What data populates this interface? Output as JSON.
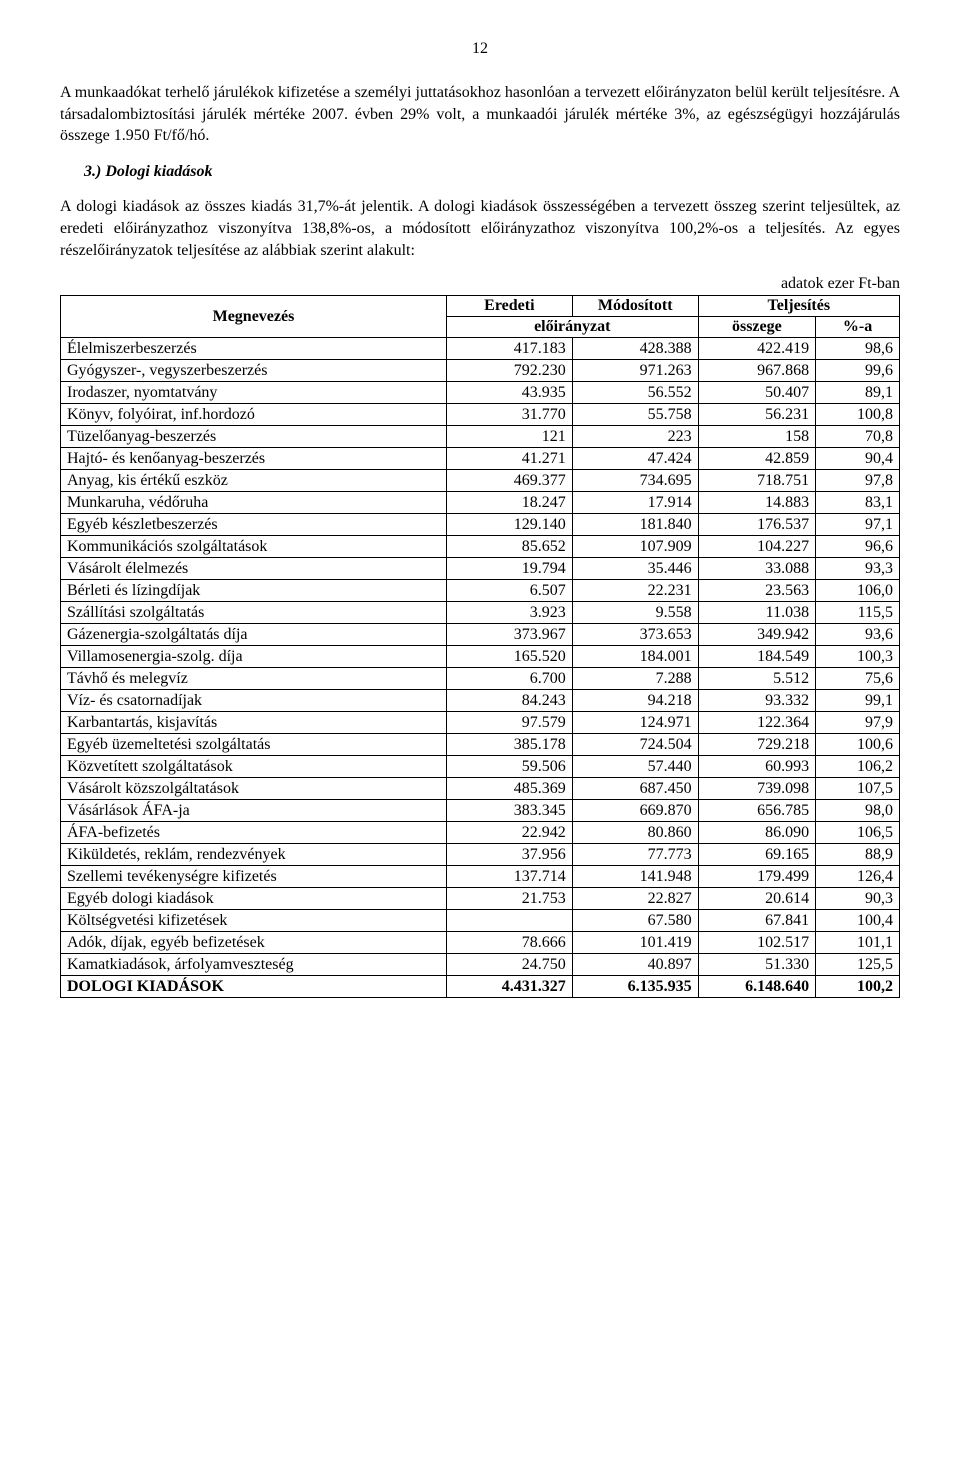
{
  "page_number": "12",
  "paragraphs": {
    "p1": "A munkaadókat terhelő járulékok kifizetése a személyi juttatásokhoz hasonlóan a tervezett előirányzaton belül került teljesítésre. A társadalombiztosítási járulék mértéke 2007. évben 29% volt, a munkaadói járulék mértéke 3%, az egészségügyi hozzájárulás összege 1.950 Ft/fő/hó.",
    "heading": "3.)  Dologi kiadások",
    "p2": "A dologi kiadások az összes kiadás 31,7%-át jelentik. A dologi kiadások összességében a tervezett összeg szerint teljesültek, az eredeti előirányzathoz viszonyítva 138,8%-os, a módosított előirányzathoz viszonyítva 100,2%-os a teljesítés. Az egyes részelőirányzatok teljesítése az alábbiak szerint alakult:",
    "caption": "adatok ezer Ft-ban"
  },
  "table": {
    "headers": {
      "name": "Megnevezés",
      "original": "Eredeti",
      "modified": "Módosított",
      "budget_span": "előirányzat",
      "fulfillment": "Teljesítés",
      "amount": "összege",
      "pct": "%-a"
    },
    "col_widths": [
      "46%",
      "15%",
      "15%",
      "14%",
      "10%"
    ],
    "rows": [
      {
        "name": "Élelmiszerbeszerzés",
        "original": "417.183",
        "modified": "428.388",
        "amount": "422.419",
        "pct": "98,6"
      },
      {
        "name": "Gyógyszer-, vegyszerbeszerzés",
        "original": "792.230",
        "modified": "971.263",
        "amount": "967.868",
        "pct": "99,6"
      },
      {
        "name": "Irodaszer, nyomtatvány",
        "original": "43.935",
        "modified": "56.552",
        "amount": "50.407",
        "pct": "89,1"
      },
      {
        "name": "Könyv, folyóirat, inf.hordozó",
        "original": "31.770",
        "modified": "55.758",
        "amount": "56.231",
        "pct": "100,8"
      },
      {
        "name": "Tüzelőanyag-beszerzés",
        "original": "121",
        "modified": "223",
        "amount": "158",
        "pct": "70,8"
      },
      {
        "name": "Hajtó- és kenőanyag-beszerzés",
        "original": "41.271",
        "modified": "47.424",
        "amount": "42.859",
        "pct": "90,4"
      },
      {
        "name": "Anyag, kis értékű eszköz",
        "original": "469.377",
        "modified": "734.695",
        "amount": "718.751",
        "pct": "97,8"
      },
      {
        "name": "Munkaruha, védőruha",
        "original": "18.247",
        "modified": "17.914",
        "amount": "14.883",
        "pct": "83,1"
      },
      {
        "name": "Egyéb készletbeszerzés",
        "original": "129.140",
        "modified": "181.840",
        "amount": "176.537",
        "pct": "97,1"
      },
      {
        "name": "Kommunikációs szolgáltatások",
        "original": "85.652",
        "modified": "107.909",
        "amount": "104.227",
        "pct": "96,6"
      },
      {
        "name": "Vásárolt élelmezés",
        "original": "19.794",
        "modified": "35.446",
        "amount": "33.088",
        "pct": "93,3"
      },
      {
        "name": "Bérleti és lízingdíjak",
        "original": "6.507",
        "modified": "22.231",
        "amount": "23.563",
        "pct": "106,0"
      },
      {
        "name": "Szállítási szolgáltatás",
        "original": "3.923",
        "modified": "9.558",
        "amount": "11.038",
        "pct": "115,5"
      },
      {
        "name": "Gázenergia-szolgáltatás díja",
        "original": "373.967",
        "modified": "373.653",
        "amount": "349.942",
        "pct": "93,6"
      },
      {
        "name": "Villamosenergia-szolg. díja",
        "original": "165.520",
        "modified": "184.001",
        "amount": "184.549",
        "pct": "100,3"
      },
      {
        "name": "Távhő és melegvíz",
        "original": "6.700",
        "modified": "7.288",
        "amount": "5.512",
        "pct": "75,6"
      },
      {
        "name": "Víz- és csatornadíjak",
        "original": "84.243",
        "modified": "94.218",
        "amount": "93.332",
        "pct": "99,1"
      },
      {
        "name": "Karbantartás, kisjavítás",
        "original": "97.579",
        "modified": "124.971",
        "amount": "122.364",
        "pct": "97,9"
      },
      {
        "name": "Egyéb üzemeltetési szolgáltatás",
        "original": "385.178",
        "modified": "724.504",
        "amount": "729.218",
        "pct": "100,6"
      },
      {
        "name": "Közvetített szolgáltatások",
        "original": "59.506",
        "modified": "57.440",
        "amount": "60.993",
        "pct": "106,2"
      },
      {
        "name": "Vásárolt közszolgáltatások",
        "original": "485.369",
        "modified": "687.450",
        "amount": "739.098",
        "pct": "107,5"
      },
      {
        "name": "Vásárlások ÁFA-ja",
        "original": "383.345",
        "modified": "669.870",
        "amount": "656.785",
        "pct": "98,0"
      },
      {
        "name": "ÁFA-befizetés",
        "original": "22.942",
        "modified": "80.860",
        "amount": "86.090",
        "pct": "106,5"
      },
      {
        "name": "Kiküldetés, reklám, rendezvények",
        "original": "37.956",
        "modified": "77.773",
        "amount": "69.165",
        "pct": "88,9"
      },
      {
        "name": "Szellemi tevékenységre kifizetés",
        "original": "137.714",
        "modified": "141.948",
        "amount": "179.499",
        "pct": "126,4"
      },
      {
        "name": "Egyéb dologi kiadások",
        "original": "21.753",
        "modified": "22.827",
        "amount": "20.614",
        "pct": "90,3"
      },
      {
        "name": "Költségvetési kifizetések",
        "original": "",
        "modified": "67.580",
        "amount": "67.841",
        "pct": "100,4"
      },
      {
        "name": "Adók, díjak, egyéb befizetések",
        "original": "78.666",
        "modified": "101.419",
        "amount": "102.517",
        "pct": "101,1"
      },
      {
        "name": "Kamatkiadások, árfolyamveszteség",
        "original": "24.750",
        "modified": "40.897",
        "amount": "51.330",
        "pct": "125,5"
      },
      {
        "name": "DOLOGI KIADÁSOK",
        "original": "4.431.327",
        "modified": "6.135.935",
        "amount": "6.148.640",
        "pct": "100,2",
        "bold": true
      }
    ]
  }
}
